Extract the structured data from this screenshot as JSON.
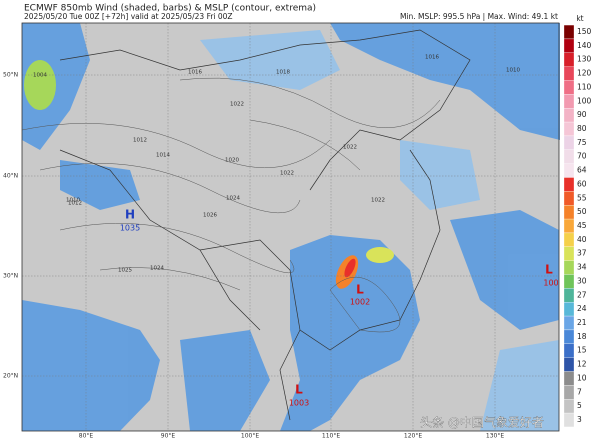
{
  "header": {
    "title": "ECMWF 850mb Wind (shaded, barbs) & MSLP (contour, extrema)",
    "subtitle": "2025/05/20 Tue 00Z [+72h] valid at 2025/05/23 Fri 00Z",
    "stats": "Min. MSLP: 995.5 hPa | Max. Wind: 49.1 kt"
  },
  "colorbar": {
    "unit": "kt",
    "levels": [
      150,
      140,
      130,
      120,
      110,
      100,
      90,
      80,
      75,
      70,
      64,
      60,
      55,
      50,
      45,
      40,
      37,
      34,
      30,
      27,
      24,
      21,
      18,
      15,
      12,
      10,
      7,
      5,
      3
    ],
    "colors": [
      "#7a0000",
      "#b00010",
      "#d81f2a",
      "#e8475a",
      "#ef6f86",
      "#f29ab0",
      "#f3b3c6",
      "#f5c6d6",
      "#ecd3e6",
      "#f1dde9",
      "#f6e4ee",
      "#e8302a",
      "#f05a28",
      "#f5822a",
      "#f9a83a",
      "#f5d04a",
      "#d9e35a",
      "#a6d75a",
      "#6fc45a",
      "#4fb59a",
      "#58b8d8",
      "#6aa6e6",
      "#4a88d8",
      "#3b6fc8",
      "#2e55a8",
      "#8c8c8c",
      "#a8a8a8",
      "#c4c4c4",
      "#e0e0e0"
    ]
  },
  "axes": {
    "lat": [
      "50°N",
      "40°N",
      "30°N",
      "20°N"
    ],
    "lon": [
      "80°E",
      "90°E",
      "100°E",
      "110°E",
      "120°E",
      "130°E"
    ]
  },
  "extrema": [
    {
      "symbol": "H",
      "value": "1035"
    },
    {
      "symbol": "L",
      "value": "1002"
    },
    {
      "symbol": "L",
      "value": "1003"
    },
    {
      "symbol": "L",
      "value": "100"
    }
  ],
  "isobars": [
    "1004",
    "1016",
    "1018",
    "1022",
    "1014",
    "1012",
    "1010",
    "1020",
    "1022",
    "1024",
    "1026",
    "1025",
    "1024",
    "1016",
    "1022",
    "1022",
    "1010",
    "1012"
  ],
  "watermark": "头条 @中国气象爱好者"
}
